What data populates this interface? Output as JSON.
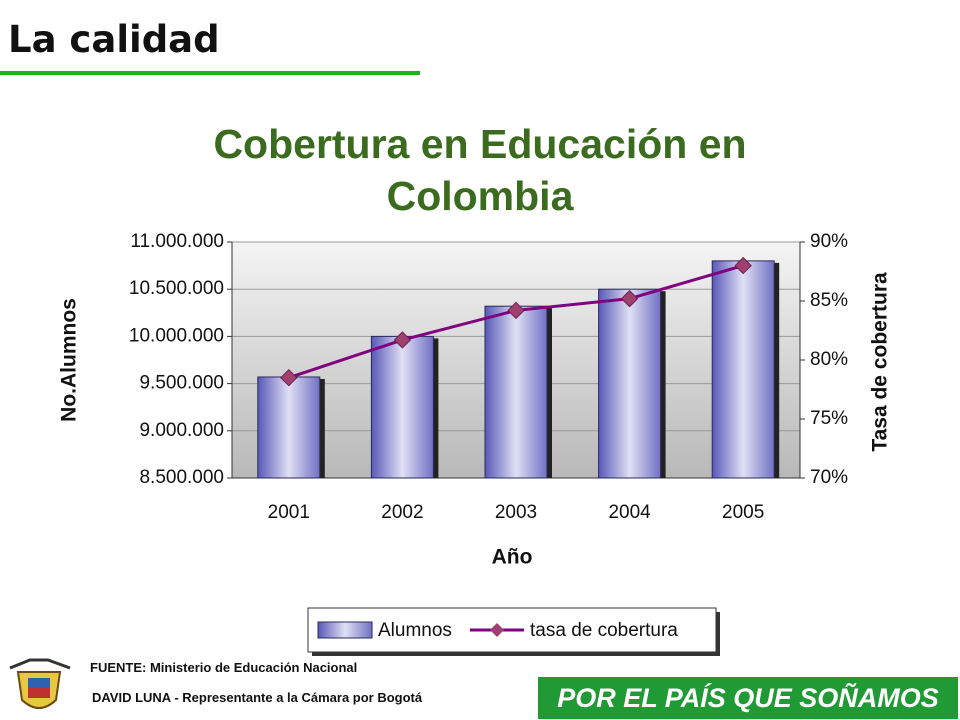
{
  "slide_title": "La calidad",
  "chart_data": {
    "type": "bar_line",
    "title": "Cobertura en Educación en Colombia",
    "x_label": "Año",
    "y_label": "No.Alumnos",
    "y2_label": "Tasa de cobertura",
    "categories": [
      "2001",
      "2002",
      "2003",
      "2004",
      "2005"
    ],
    "series": [
      {
        "name": "Alumnos",
        "type": "bar",
        "color": "#9a9ad8",
        "values": [
          9570000,
          10000000,
          10320000,
          10500000,
          10800000
        ]
      },
      {
        "name": "tasa de cobertura",
        "type": "line",
        "axis": "y2",
        "color": "#800080",
        "values": [
          78.5,
          81.7,
          84.2,
          85.2,
          88.0
        ]
      }
    ],
    "ylim": [
      8500000,
      11000000
    ],
    "yticks": [
      {
        "value": 8500000,
        "label": "8.500.000"
      },
      {
        "value": 9000000,
        "label": "9.000.000"
      },
      {
        "value": 9500000,
        "label": "9.500.000"
      },
      {
        "value": 10000000,
        "label": "10.000.000"
      },
      {
        "value": 10500000,
        "label": "10.500.000"
      },
      {
        "value": 11000000,
        "label": "11.000.000"
      }
    ],
    "y2lim": [
      70,
      90
    ],
    "y2ticks": [
      {
        "value": 70,
        "label": "70%"
      },
      {
        "value": 75,
        "label": "75%"
      },
      {
        "value": 80,
        "label": "80%"
      },
      {
        "value": 85,
        "label": "85%"
      },
      {
        "value": 90,
        "label": "90%"
      }
    ],
    "grid": true,
    "legend": "bottom"
  },
  "footer": {
    "source": "FUENTE: Ministerio de Educación Nacional",
    "author": "DAVID LUNA - Representante a la Cámara por Bogotá",
    "banner": "POR EL PAÍS QUE SOÑAMOS"
  }
}
